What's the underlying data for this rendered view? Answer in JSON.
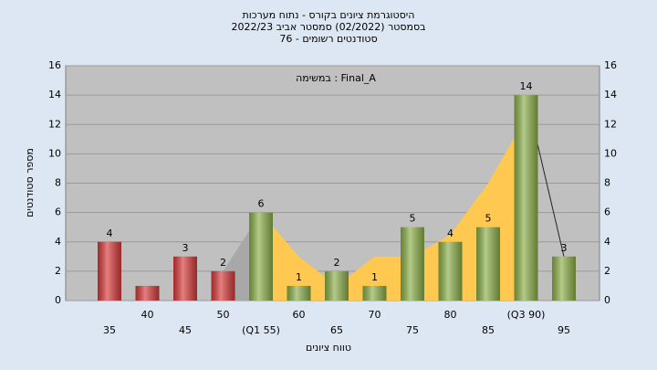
{
  "chart_data": {
    "type": "bar",
    "title_lines": [
      "היסטוגרמת ציונים בקורס - נתוח מערכות",
      "בסמסטר  (02/2022)  סמסטר אביב 2022/23",
      "סטודנטים רשומים - 76"
    ],
    "annotation": "Final_A : במשימה",
    "x_label": "טווח ציונים",
    "y_label": "מספר סטודנטים",
    "categories": [
      "35",
      "40",
      "45",
      "50",
      "(Q1 55)",
      "60",
      "65",
      "70",
      "75",
      "80",
      "85",
      "(Q3 90)",
      "95"
    ],
    "values": [
      4,
      1,
      3,
      2,
      6,
      1,
      2,
      1,
      5,
      4,
      5,
      14,
      3
    ],
    "value_labels": [
      "4",
      null,
      "3",
      "2",
      "6",
      "1",
      "2",
      "1",
      "5",
      "4",
      "5",
      "14",
      "3"
    ],
    "colors": [
      "#d83a3a",
      "#d83a3a",
      "#d83a3a",
      "#d83a3a",
      "#8cb04a",
      "#8cb04a",
      "#8cb04a",
      "#8cb04a",
      "#8cb04a",
      "#8cb04a",
      "#8cb04a",
      "#8cb04a",
      "#8cb04a"
    ],
    "overlay": {
      "values": [
        4,
        1,
        3,
        2,
        6,
        3,
        1,
        3,
        3,
        4.5,
        8,
        12.5,
        3
      ],
      "colors": [
        "#a8a8a8",
        "#ffc850",
        "#222222"
      ]
    },
    "ylim": [
      0,
      16
    ],
    "yticks": [
      0,
      2,
      4,
      6,
      8,
      10,
      12,
      14,
      16
    ],
    "grid": true
  }
}
